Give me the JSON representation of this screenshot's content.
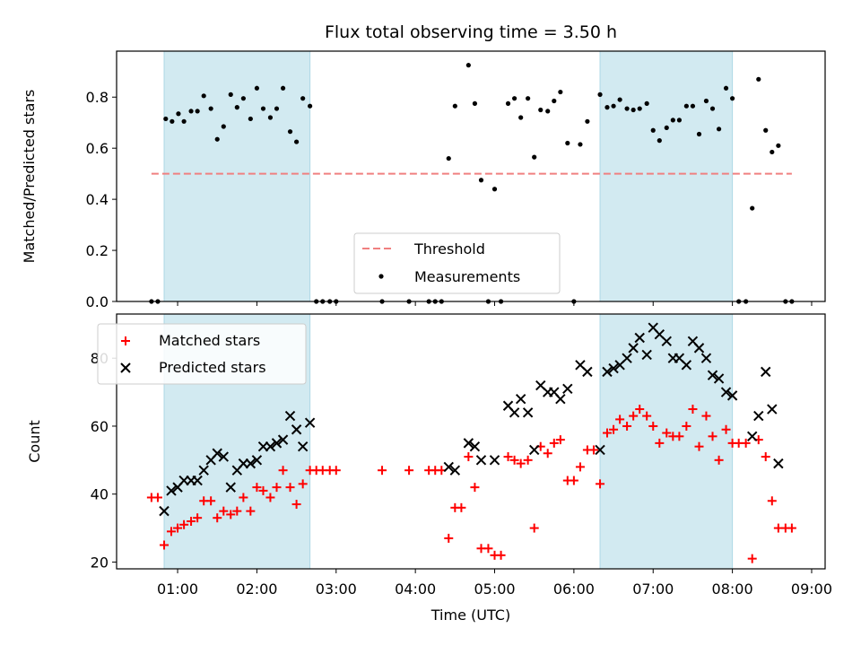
{
  "chart_data": [
    {
      "type": "scatter",
      "title": "Flux total observing time = 3.50 h",
      "xlabel": "",
      "ylabel": "Matched/Predicted stars",
      "ylim": [
        0,
        0.98
      ],
      "yticks": [
        "0.0",
        "0.2",
        "0.4",
        "0.6",
        "0.8"
      ],
      "x_unit": "hours UTC",
      "xlim": [
        0.23,
        9.17
      ],
      "shaded_intervals": [
        [
          0.83,
          2.67
        ],
        [
          6.33,
          8.0
        ]
      ],
      "shade_color": "#add8e6",
      "threshold": {
        "name": "Threshold",
        "value": 0.5,
        "x_range": [
          0.67,
          8.75
        ],
        "color": "#f08080",
        "style": "dashed"
      },
      "legend": {
        "placement": "lower center",
        "entries": [
          "Threshold",
          "Measurements"
        ]
      },
      "series": [
        {
          "name": "Measurements",
          "color": "#000000",
          "marker": "dot",
          "points": [
            [
              0.67,
              0
            ],
            [
              0.75,
              0
            ],
            [
              0.85,
              0.715
            ],
            [
              0.93,
              0.705
            ],
            [
              1.01,
              0.735
            ],
            [
              1.08,
              0.705
            ],
            [
              1.17,
              0.745
            ],
            [
              1.25,
              0.745
            ],
            [
              1.33,
              0.805
            ],
            [
              1.42,
              0.755
            ],
            [
              1.5,
              0.635
            ],
            [
              1.58,
              0.685
            ],
            [
              1.67,
              0.81
            ],
            [
              1.75,
              0.76
            ],
            [
              1.83,
              0.795
            ],
            [
              1.92,
              0.715
            ],
            [
              2.0,
              0.835
            ],
            [
              2.08,
              0.755
            ],
            [
              2.17,
              0.72
            ],
            [
              2.25,
              0.755
            ],
            [
              2.33,
              0.835
            ],
            [
              2.42,
              0.665
            ],
            [
              2.5,
              0.625
            ],
            [
              2.58,
              0.795
            ],
            [
              2.67,
              0.765
            ],
            [
              2.75,
              0
            ],
            [
              2.83,
              0
            ],
            [
              2.92,
              0
            ],
            [
              3.0,
              0
            ],
            [
              3.58,
              0
            ],
            [
              3.92,
              0
            ],
            [
              4.17,
              0
            ],
            [
              4.25,
              0
            ],
            [
              4.33,
              0
            ],
            [
              4.42,
              0.56
            ],
            [
              4.5,
              0.765
            ],
            [
              4.67,
              0.925
            ],
            [
              4.75,
              0.775
            ],
            [
              4.83,
              0.475
            ],
            [
              4.92,
              0
            ],
            [
              5.0,
              0.44
            ],
            [
              5.08,
              0
            ],
            [
              5.17,
              0.775
            ],
            [
              5.25,
              0.795
            ],
            [
              5.33,
              0.72
            ],
            [
              5.42,
              0.795
            ],
            [
              5.5,
              0.565
            ],
            [
              5.58,
              0.75
            ],
            [
              5.67,
              0.745
            ],
            [
              5.75,
              0.785
            ],
            [
              5.83,
              0.82
            ],
            [
              5.92,
              0.62
            ],
            [
              6.0,
              0
            ],
            [
              6.08,
              0.615
            ],
            [
              6.17,
              0.705
            ],
            [
              6.33,
              0.81
            ],
            [
              6.42,
              0.76
            ],
            [
              6.5,
              0.765
            ],
            [
              6.58,
              0.79
            ],
            [
              6.67,
              0.755
            ],
            [
              6.75,
              0.75
            ],
            [
              6.83,
              0.755
            ],
            [
              6.92,
              0.775
            ],
            [
              7.0,
              0.67
            ],
            [
              7.08,
              0.63
            ],
            [
              7.17,
              0.68
            ],
            [
              7.25,
              0.71
            ],
            [
              7.33,
              0.71
            ],
            [
              7.42,
              0.765
            ],
            [
              7.5,
              0.765
            ],
            [
              7.58,
              0.655
            ],
            [
              7.67,
              0.785
            ],
            [
              7.75,
              0.755
            ],
            [
              7.83,
              0.675
            ],
            [
              7.92,
              0.835
            ],
            [
              8.0,
              0.795
            ],
            [
              8.08,
              0
            ],
            [
              8.17,
              0
            ],
            [
              8.25,
              0.365
            ],
            [
              8.33,
              0.87
            ],
            [
              8.42,
              0.67
            ],
            [
              8.5,
              0.585
            ],
            [
              8.58,
              0.61
            ],
            [
              8.67,
              0
            ],
            [
              8.75,
              0
            ]
          ]
        }
      ]
    },
    {
      "type": "scatter",
      "title": "",
      "xlabel": "Time (UTC)",
      "ylabel": "Count",
      "ylim": [
        18,
        93
      ],
      "yticks": [
        "20",
        "40",
        "60",
        "80"
      ],
      "x_unit": "hours UTC",
      "xlim": [
        0.23,
        9.17
      ],
      "xticks": [
        {
          "value": 1,
          "label": "01:00"
        },
        {
          "value": 2,
          "label": "02:00"
        },
        {
          "value": 3,
          "label": "03:00"
        },
        {
          "value": 4,
          "label": "04:00"
        },
        {
          "value": 5,
          "label": "05:00"
        },
        {
          "value": 6,
          "label": "06:00"
        },
        {
          "value": 7,
          "label": "07:00"
        },
        {
          "value": 8,
          "label": "08:00"
        },
        {
          "value": 9,
          "label": "09:00"
        }
      ],
      "shaded_intervals": [
        [
          0.83,
          2.67
        ],
        [
          6.33,
          8.0
        ]
      ],
      "shade_color": "#add8e6",
      "legend": {
        "placement": "upper left",
        "entries": [
          "Matched stars",
          "Predicted stars"
        ]
      },
      "series": [
        {
          "name": "Matched stars",
          "color": "#ff0000",
          "marker": "plus",
          "points": [
            [
              0.67,
              39
            ],
            [
              0.75,
              39
            ],
            [
              0.83,
              25
            ],
            [
              0.92,
              29
            ],
            [
              1.0,
              30
            ],
            [
              1.08,
              31
            ],
            [
              1.17,
              32
            ],
            [
              1.25,
              33
            ],
            [
              1.33,
              38
            ],
            [
              1.42,
              38
            ],
            [
              1.5,
              33
            ],
            [
              1.58,
              35
            ],
            [
              1.67,
              34
            ],
            [
              1.75,
              35
            ],
            [
              1.83,
              39
            ],
            [
              1.92,
              35
            ],
            [
              2.0,
              42
            ],
            [
              2.08,
              41
            ],
            [
              2.17,
              39
            ],
            [
              2.25,
              42
            ],
            [
              2.33,
              47
            ],
            [
              2.42,
              42
            ],
            [
              2.5,
              37
            ],
            [
              2.58,
              43
            ],
            [
              2.67,
              47
            ],
            [
              2.75,
              47
            ],
            [
              2.83,
              47
            ],
            [
              2.92,
              47
            ],
            [
              3.0,
              47
            ],
            [
              3.58,
              47
            ],
            [
              3.92,
              47
            ],
            [
              4.17,
              47
            ],
            [
              4.25,
              47
            ],
            [
              4.33,
              47
            ],
            [
              4.42,
              27
            ],
            [
              4.5,
              36
            ],
            [
              4.58,
              36
            ],
            [
              4.67,
              51
            ],
            [
              4.75,
              42
            ],
            [
              4.83,
              24
            ],
            [
              4.92,
              24
            ],
            [
              5.0,
              22
            ],
            [
              5.08,
              22
            ],
            [
              5.17,
              51
            ],
            [
              5.25,
              50
            ],
            [
              5.33,
              49
            ],
            [
              5.42,
              50
            ],
            [
              5.5,
              30
            ],
            [
              5.58,
              54
            ],
            [
              5.67,
              52
            ],
            [
              5.75,
              55
            ],
            [
              5.83,
              56
            ],
            [
              5.92,
              44
            ],
            [
              6.0,
              44
            ],
            [
              6.08,
              48
            ],
            [
              6.17,
              53
            ],
            [
              6.25,
              53
            ],
            [
              6.33,
              43
            ],
            [
              6.42,
              58
            ],
            [
              6.5,
              59
            ],
            [
              6.58,
              62
            ],
            [
              6.67,
              60
            ],
            [
              6.75,
              63
            ],
            [
              6.83,
              65
            ],
            [
              6.92,
              63
            ],
            [
              7.0,
              60
            ],
            [
              7.08,
              55
            ],
            [
              7.17,
              58
            ],
            [
              7.25,
              57
            ],
            [
              7.33,
              57
            ],
            [
              7.42,
              60
            ],
            [
              7.5,
              65
            ],
            [
              7.58,
              54
            ],
            [
              7.67,
              63
            ],
            [
              7.75,
              57
            ],
            [
              7.83,
              50
            ],
            [
              7.92,
              59
            ],
            [
              8.0,
              55
            ],
            [
              8.08,
              55
            ],
            [
              8.17,
              55
            ],
            [
              8.25,
              21
            ],
            [
              8.33,
              56
            ],
            [
              8.42,
              51
            ],
            [
              8.5,
              38
            ],
            [
              8.58,
              30
            ],
            [
              8.67,
              30
            ],
            [
              8.75,
              30
            ]
          ]
        },
        {
          "name": "Predicted stars",
          "color": "#000000",
          "marker": "cross",
          "points": [
            [
              0.83,
              35
            ],
            [
              0.92,
              41
            ],
            [
              1.0,
              42
            ],
            [
              1.08,
              44
            ],
            [
              1.17,
              44
            ],
            [
              1.25,
              44
            ],
            [
              1.33,
              47
            ],
            [
              1.42,
              50
            ],
            [
              1.5,
              52
            ],
            [
              1.58,
              51
            ],
            [
              1.67,
              42
            ],
            [
              1.75,
              47
            ],
            [
              1.83,
              49
            ],
            [
              1.92,
              49
            ],
            [
              2.0,
              50
            ],
            [
              2.08,
              54
            ],
            [
              2.17,
              54
            ],
            [
              2.25,
              55
            ],
            [
              2.33,
              56
            ],
            [
              2.42,
              63
            ],
            [
              2.5,
              59
            ],
            [
              2.58,
              54
            ],
            [
              2.67,
              61
            ],
            [
              4.42,
              48
            ],
            [
              4.5,
              47
            ],
            [
              4.67,
              55
            ],
            [
              4.75,
              54
            ],
            [
              4.83,
              50
            ],
            [
              5.0,
              50
            ],
            [
              5.17,
              66
            ],
            [
              5.25,
              64
            ],
            [
              5.33,
              68
            ],
            [
              5.42,
              64
            ],
            [
              5.5,
              53
            ],
            [
              5.58,
              72
            ],
            [
              5.67,
              70
            ],
            [
              5.75,
              70
            ],
            [
              5.83,
              68
            ],
            [
              5.92,
              71
            ],
            [
              6.08,
              78
            ],
            [
              6.17,
              76
            ],
            [
              6.33,
              53
            ],
            [
              6.42,
              76
            ],
            [
              6.5,
              77
            ],
            [
              6.58,
              78
            ],
            [
              6.67,
              80
            ],
            [
              6.75,
              83
            ],
            [
              6.83,
              86
            ],
            [
              6.92,
              81
            ],
            [
              7.0,
              89
            ],
            [
              7.08,
              87
            ],
            [
              7.17,
              85
            ],
            [
              7.25,
              80
            ],
            [
              7.33,
              80
            ],
            [
              7.42,
              78
            ],
            [
              7.5,
              85
            ],
            [
              7.58,
              83
            ],
            [
              7.67,
              80
            ],
            [
              7.75,
              75
            ],
            [
              7.83,
              74
            ],
            [
              7.92,
              70
            ],
            [
              8.0,
              69
            ],
            [
              8.25,
              57
            ],
            [
              8.33,
              63
            ],
            [
              8.42,
              76
            ],
            [
              8.5,
              65
            ],
            [
              8.58,
              49
            ]
          ]
        }
      ]
    }
  ]
}
